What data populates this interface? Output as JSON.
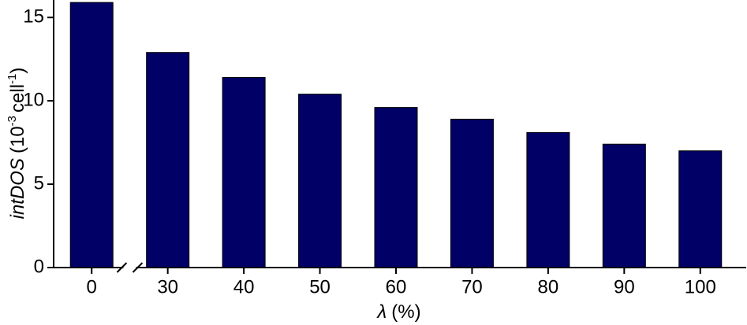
{
  "chart_data": {
    "type": "bar",
    "ylabel": [
      "intDOS",
      "(10",
      "-3",
      "cell",
      "-1",
      ")"
    ],
    "xlabel": [
      "λ",
      "(%)"
    ],
    "categories": [
      "0",
      "30",
      "40",
      "50",
      "60",
      "70",
      "80",
      "90",
      "100"
    ],
    "values": [
      15.9,
      12.9,
      11.4,
      10.4,
      9.6,
      8.9,
      8.1,
      7.4,
      7.0
    ],
    "color": "#000066",
    "ylim": [
      0,
      16
    ],
    "yticks": [
      0,
      5,
      10,
      15
    ],
    "grid": false
  }
}
